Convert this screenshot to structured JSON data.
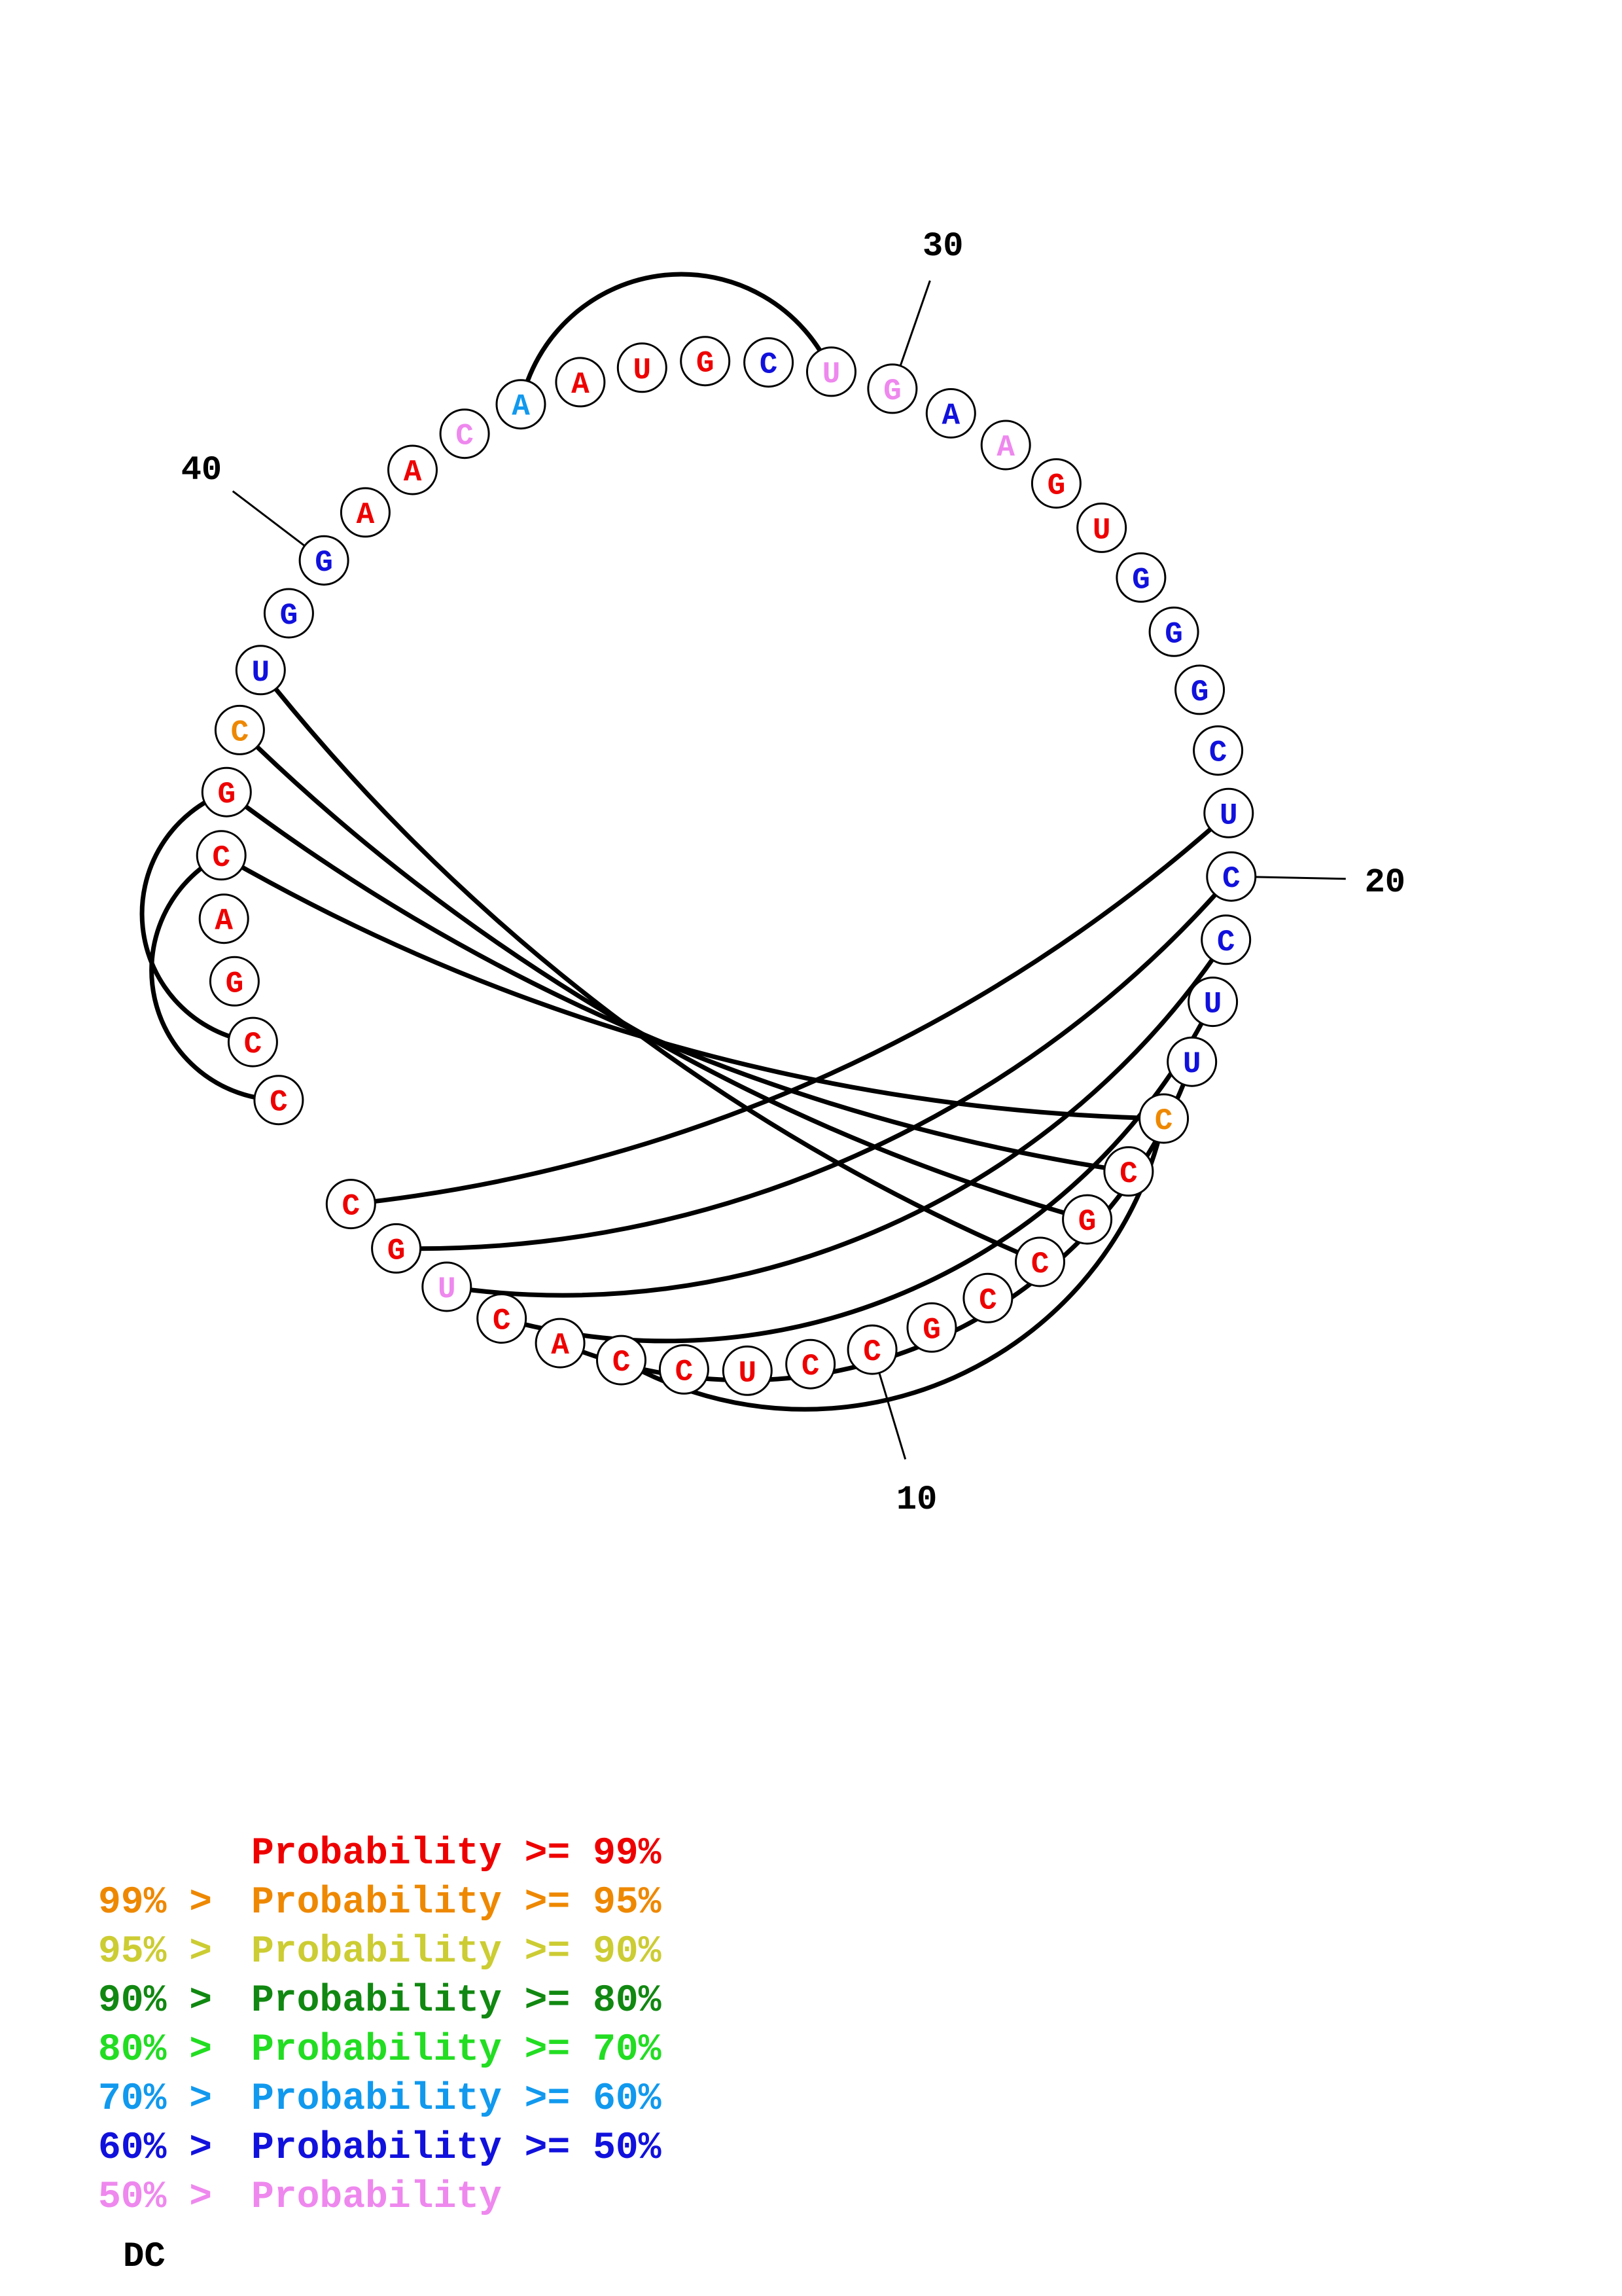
{
  "sequence": [
    "C",
    "G",
    "U",
    "C",
    "A",
    "C",
    "C",
    "U",
    "C",
    "C",
    "G",
    "C",
    "C",
    "G",
    "C",
    "C",
    "U",
    "U",
    "C",
    "C",
    "U",
    "C",
    "G",
    "G",
    "G",
    "U",
    "G",
    "A",
    "A",
    "G",
    "U",
    "C",
    "G",
    "U",
    "A",
    "A",
    "C",
    "A",
    "A",
    "G",
    "G",
    "U",
    "C",
    "G",
    "C",
    "A",
    "G",
    "C",
    "C"
  ],
  "probability_colors": [
    "red",
    "red",
    "pink",
    "red",
    "red",
    "red",
    "red",
    "red",
    "red",
    "red",
    "red",
    "red",
    "red",
    "red",
    "red",
    "orange",
    "blue",
    "blue",
    "blue",
    "blue",
    "blue",
    "blue",
    "blue",
    "blue",
    "blue",
    "red",
    "red",
    "pink",
    "blue",
    "pink",
    "pink",
    "blue",
    "red",
    "red",
    "red",
    "sky",
    "pink",
    "red",
    "red",
    "blue",
    "blue",
    "blue",
    "orange",
    "red",
    "red",
    "red",
    "red",
    "red",
    "red"
  ],
  "pairs": [
    {
      "i": 1,
      "j": 21
    },
    {
      "i": 2,
      "j": 20
    },
    {
      "i": 3,
      "j": 19
    },
    {
      "i": 4,
      "j": 18
    },
    {
      "i": 5,
      "j": 17
    },
    {
      "i": 6,
      "j": 16
    },
    {
      "i": 13,
      "j": 42
    },
    {
      "i": 14,
      "j": 43
    },
    {
      "i": 15,
      "j": 44
    },
    {
      "i": 16,
      "j": 45
    },
    {
      "i": 31,
      "j": 36
    },
    {
      "i": 44,
      "j": 48
    },
    {
      "i": 45,
      "j": 49
    }
  ],
  "position_labels": [
    {
      "index": 10,
      "text": "10"
    },
    {
      "index": 20,
      "text": "20"
    },
    {
      "index": 30,
      "text": "30"
    },
    {
      "index": 40,
      "text": "40"
    }
  ],
  "palette": {
    "red": "#ee0000",
    "orange": "#ee8800",
    "yellow": "#cccc33",
    "darkgreen": "#118811",
    "green": "#22dd22",
    "sky": "#1199ee",
    "blue": "#1111dd",
    "pink": "#ee88ee"
  },
  "legend": [
    {
      "prefix": "",
      "text": "Probability >= 99%",
      "color": "red"
    },
    {
      "prefix": "99% > ",
      "text": "Probability >= 95%",
      "color": "orange"
    },
    {
      "prefix": "95% > ",
      "text": "Probability >= 90%",
      "color": "yellow"
    },
    {
      "prefix": "90% > ",
      "text": "Probability >= 80%",
      "color": "darkgreen"
    },
    {
      "prefix": "80% > ",
      "text": "Probability >= 70%",
      "color": "green"
    },
    {
      "prefix": "70% > ",
      "text": "Probability >= 60%",
      "color": "sky"
    },
    {
      "prefix": "60% > ",
      "text": "Probability >= 50%",
      "color": "blue"
    },
    {
      "prefix": "50% > ",
      "text": "Probability",
      "color": "pink"
    }
  ],
  "footer": "DC"
}
